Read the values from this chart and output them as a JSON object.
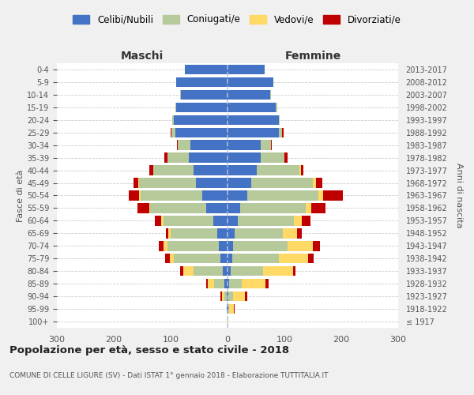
{
  "age_groups": [
    "100+",
    "95-99",
    "90-94",
    "85-89",
    "80-84",
    "75-79",
    "70-74",
    "65-69",
    "60-64",
    "55-59",
    "50-54",
    "45-49",
    "40-44",
    "35-39",
    "30-34",
    "25-29",
    "20-24",
    "15-19",
    "10-14",
    "5-9",
    "0-4"
  ],
  "birth_years": [
    "≤ 1917",
    "1918-1922",
    "1923-1927",
    "1928-1932",
    "1933-1937",
    "1938-1942",
    "1943-1947",
    "1948-1952",
    "1953-1957",
    "1958-1962",
    "1963-1967",
    "1968-1972",
    "1973-1977",
    "1978-1982",
    "1983-1987",
    "1988-1992",
    "1993-1997",
    "1998-2002",
    "2003-2007",
    "2008-2012",
    "2013-2017"
  ],
  "colors": {
    "celibi": "#4472c4",
    "coniugati": "#b5c99a",
    "vedovi": "#ffd966",
    "divorziati": "#c00000"
  },
  "maschi": {
    "celibi": [
      0,
      1,
      2,
      5,
      8,
      12,
      15,
      18,
      25,
      38,
      45,
      55,
      60,
      68,
      65,
      92,
      95,
      90,
      82,
      90,
      75
    ],
    "coniugati": [
      0,
      0,
      4,
      18,
      52,
      82,
      90,
      82,
      88,
      98,
      108,
      100,
      70,
      38,
      22,
      6,
      2,
      1,
      1,
      0,
      0
    ],
    "vedovi": [
      0,
      1,
      4,
      12,
      18,
      8,
      8,
      4,
      3,
      2,
      2,
      2,
      1,
      0,
      0,
      0,
      0,
      0,
      0,
      0,
      0
    ],
    "divorziati": [
      0,
      0,
      2,
      2,
      5,
      8,
      8,
      5,
      12,
      20,
      18,
      8,
      6,
      5,
      2,
      2,
      0,
      0,
      0,
      0,
      0
    ]
  },
  "femmine": {
    "celibi": [
      0,
      1,
      2,
      3,
      5,
      8,
      10,
      12,
      18,
      22,
      35,
      42,
      52,
      58,
      58,
      90,
      90,
      85,
      75,
      80,
      65
    ],
    "coniugati": [
      0,
      2,
      8,
      22,
      58,
      82,
      95,
      85,
      98,
      115,
      125,
      108,
      75,
      42,
      18,
      6,
      2,
      2,
      1,
      0,
      0
    ],
    "vedovi": [
      2,
      8,
      20,
      42,
      52,
      52,
      45,
      25,
      15,
      10,
      8,
      5,
      2,
      0,
      0,
      0,
      0,
      0,
      0,
      0,
      0
    ],
    "divorziati": [
      0,
      2,
      5,
      5,
      5,
      10,
      12,
      8,
      15,
      25,
      35,
      12,
      5,
      5,
      2,
      2,
      0,
      0,
      0,
      0,
      0
    ]
  },
  "title": "Popolazione per età, sesso e stato civile - 2018",
  "subtitle": "COMUNE DI CELLE LIGURE (SV) - Dati ISTAT 1° gennaio 2018 - Elaborazione TUTTITALIA.IT",
  "xlabel_left": "Maschi",
  "xlabel_right": "Femmine",
  "ylabel_left": "Fasce di età",
  "ylabel_right": "Anni di nascita",
  "xlim": 300,
  "legend_labels": [
    "Celibi/Nubili",
    "Coniugati/e",
    "Vedovi/e",
    "Divorziati/e"
  ],
  "bg_color": "#f0f0f0",
  "plot_bg": "#ffffff",
  "figsize": [
    6.0,
    5.0
  ],
  "dpi": 100
}
